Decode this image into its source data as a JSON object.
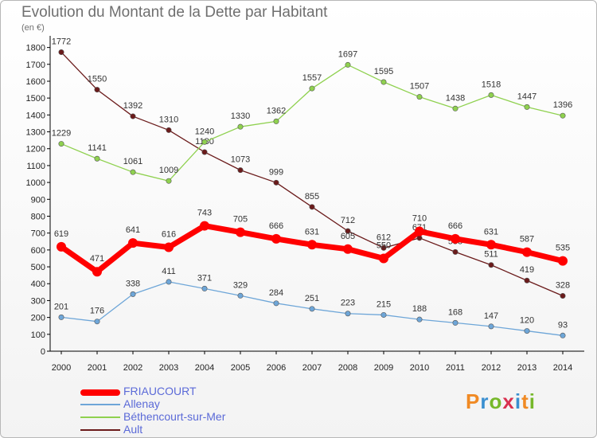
{
  "header": {
    "title": "Evolution du Montant de la Dette par Habitant",
    "unit": "(en €)"
  },
  "logo": {
    "text": "Proxiti",
    "colors": [
      "#f08a24",
      "#3a8fd0",
      "#76b82a",
      "#d9304f",
      "#3a8fd0",
      "#f08a24",
      "#76b82a"
    ]
  },
  "chart_data": {
    "type": "line",
    "title": "Evolution du Montant de la Dette par Habitant",
    "ylabel": "(en €)",
    "x": [
      "2000",
      "2001",
      "2002",
      "2003",
      "2004",
      "2005",
      "2006",
      "2007",
      "2008",
      "2009",
      "2010",
      "2011",
      "2012",
      "2013",
      "2014"
    ],
    "yticks": [
      0,
      100,
      200,
      300,
      400,
      500,
      600,
      700,
      800,
      900,
      1000,
      1100,
      1200,
      1300,
      1400,
      1500,
      1600,
      1700,
      1800
    ],
    "ylim": [
      0,
      1850
    ],
    "grid": false,
    "legend_position": "bottom-left",
    "series": [
      {
        "name": "Ault",
        "color": "#6b1b1b",
        "values": [
          1772,
          1550,
          1392,
          1310,
          1180,
          1073,
          999,
          855,
          712,
          612,
          671,
          588,
          511,
          419,
          328
        ],
        "labels": [
          "1772",
          "1550",
          "1392",
          "1310",
          "1180",
          "1073",
          "999",
          "855",
          "712",
          "612",
          "671",
          "588",
          "511",
          "419",
          "328"
        ]
      },
      {
        "name": "Béthencourt-sur-Mer",
        "color": "#8fd14f",
        "values": [
          1229,
          1141,
          1061,
          1009,
          1240,
          1330,
          1362,
          1557,
          1697,
          1595,
          1507,
          1438,
          1518,
          1447,
          1396
        ],
        "labels": [
          "1229",
          "1141",
          "1061",
          "1009",
          "1240",
          "1330",
          "1362",
          "1557",
          "1697",
          "1595",
          "1507",
          "1438",
          "1518",
          "1447",
          "1396"
        ]
      },
      {
        "name": "Allenay",
        "color": "#6ea6d8",
        "values": [
          201,
          176,
          338,
          411,
          371,
          329,
          284,
          251,
          223,
          215,
          188,
          168,
          147,
          120,
          93
        ],
        "labels": [
          "201",
          "176",
          "338",
          "411",
          "371",
          "329",
          "284",
          "251",
          "223",
          "215",
          "188",
          "168",
          "147",
          "120",
          "93"
        ]
      },
      {
        "name": "FRIAUCOURT",
        "color": "#ff0000",
        "values": [
          619,
          471,
          641,
          616,
          743,
          705,
          666,
          631,
          605,
          550,
          710,
          666,
          631,
          587,
          535
        ],
        "labels": [
          "619",
          "471",
          "641",
          "616",
          "743",
          "705",
          "666",
          "631",
          "605",
          "550",
          "710",
          "666",
          "631",
          "587",
          "535"
        ]
      }
    ]
  },
  "legend": [
    {
      "name": "FRIAUCOURT",
      "color": "#ff0000",
      "thick": true
    },
    {
      "name": "Allenay",
      "color": "#6ea6d8",
      "thick": false
    },
    {
      "name": "Béthencourt-sur-Mer",
      "color": "#8fd14f",
      "thick": false
    },
    {
      "name": "Ault",
      "color": "#6b1b1b",
      "thick": false
    }
  ]
}
